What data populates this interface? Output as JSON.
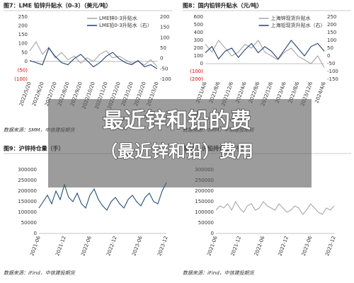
{
  "chart_data": [
    {
      "type": "line",
      "title": "图7：LME 铅锌升贴水（0-3）（美元/吨）",
      "source": "数据来源：SMM，中信建投期货",
      "categories": [
        "2022/5/20",
        null,
        "2022/6/20",
        null,
        "2022/7/20",
        null,
        "2022/8/20",
        null,
        "2022/9/20",
        null,
        "2022/10/20",
        null,
        "2022/11/20",
        null,
        "2022/12/20",
        null,
        "2023/1/20",
        null,
        "2023/2/20",
        null,
        "2023/3/20"
      ],
      "series": [
        {
          "name": "LME锌0-3升贴水",
          "color": "#a6a6a6",
          "values": [
            60,
            110,
            40,
            80,
            20,
            50,
            10,
            30,
            -10,
            20,
            0,
            40,
            60,
            20,
            30,
            10,
            -10,
            0,
            -20,
            10,
            -30
          ]
        },
        {
          "name": "LME铅0-3升贴水（右）",
          "color": "#1f3f73",
          "axis": "y2",
          "values": [
            -10,
            -20,
            -30,
            50,
            10,
            -20,
            -30,
            0,
            20,
            -10,
            -40,
            -20,
            10,
            30,
            0,
            -20,
            -30,
            -10,
            -40,
            -30,
            -50
          ]
        }
      ],
      "ylim": [
        -100,
        250
      ],
      "yticks": [
        {
          "value": -100,
          "label": "(100)"
        },
        {
          "value": -50,
          "label": "(50)"
        },
        0,
        50,
        100,
        150,
        200,
        250
      ],
      "y2lim": [
        -100,
        200
      ],
      "y2ticks": [
        -100,
        -50,
        0,
        50,
        100,
        150,
        200
      ]
    },
    {
      "type": "line",
      "title": "图8：国内铅锌升贴水（元/吨）",
      "source": "数据来源：SMM，中信建投期货",
      "categories": [
        "2021/4/6",
        null,
        "2021/8/6",
        null,
        "2021/12/6",
        null,
        "2022/4/6",
        null,
        "2022/8/6",
        null,
        "2022/12/6",
        null,
        "2023/4/6",
        null,
        "2023/8/6",
        null,
        "2023/12/6",
        null,
        "2024/4/6"
      ],
      "series": [
        {
          "name": "上海锌现货升贴水",
          "color": "#a6a6a6",
          "values": [
            250,
            150,
            300,
            200,
            100,
            150,
            250,
            200,
            300,
            150,
            100,
            50,
            150,
            200,
            100,
            50,
            0,
            100,
            -50
          ]
        },
        {
          "name": "上海铅现货升贴水（右）",
          "color": "#1f3f73",
          "axis": "y2",
          "values": [
            20,
            60,
            -20,
            30,
            50,
            -10,
            40,
            80,
            20,
            60,
            30,
            -20,
            40,
            100,
            50,
            0,
            60,
            80,
            30
          ]
        }
      ],
      "ylim": [
        -200,
        600
      ],
      "yticks": [
        {
          "value": -200,
          "label": "(200)"
        },
        {
          "value": -100,
          "label": "(100)"
        },
        0,
        100,
        200,
        300,
        400,
        500,
        600
      ],
      "y2lim": [
        -150,
        250
      ],
      "y2ticks": [
        -150,
        -100,
        -50,
        0,
        50,
        100,
        150,
        200,
        250
      ]
    },
    {
      "type": "line",
      "title": "图9：沪锌持仓量（手）",
      "source": "数据来源：iFind，中信建投期货",
      "categories": [
        "2021-06",
        null,
        null,
        null,
        null,
        null,
        "2021-12",
        null,
        null,
        null,
        null,
        null,
        "2022-06",
        null,
        null,
        null,
        null,
        null,
        "2022-12",
        null,
        null,
        null,
        null,
        null,
        "2023-06",
        null,
        null,
        null,
        null,
        null,
        "2023-12"
      ],
      "series": [
        {
          "color": "#1f4e79",
          "values": [
            120000,
            150000,
            180000,
            140000,
            200000,
            160000,
            230000,
            170000,
            150000,
            190000,
            140000,
            120000,
            180000,
            210000,
            160000,
            130000,
            110000,
            150000,
            170000,
            140000,
            120000,
            160000,
            180000,
            150000,
            130000,
            170000,
            190000,
            150000,
            140000,
            200000,
            240000
          ]
        }
      ],
      "ylim": [
        0,
        300000
      ],
      "yticks": [
        0,
        50000,
        100000,
        150000,
        200000,
        250000,
        300000
      ]
    },
    {
      "type": "line",
      "title": "图10：沪铅持仓量（手）",
      "source": "数据来源：iFind，中信建投期货",
      "categories": [
        "2021-06",
        null,
        null,
        null,
        null,
        null,
        "2021-12",
        null,
        null,
        null,
        null,
        null,
        "2022-06",
        null,
        null,
        null,
        null,
        null,
        "2022-12",
        null,
        null,
        null,
        null,
        null,
        "2023-06",
        null,
        null,
        null,
        null,
        null,
        "2023-12"
      ],
      "series": [
        {
          "color": "#a6a6a6",
          "values": [
            110000,
            130000,
            120000,
            140000,
            110000,
            150000,
            120000,
            100000,
            130000,
            140000,
            110000,
            120000,
            150000,
            130000,
            120000,
            110000,
            140000,
            120000,
            100000,
            110000,
            130000,
            120000,
            90000,
            110000,
            140000,
            120000,
            100000,
            90000,
            120000,
            110000,
            130000
          ]
        }
      ],
      "ylim": [
        0,
        300000
      ],
      "yticks": [
        0,
        50000,
        100000,
        150000,
        200000,
        250000,
        300000
      ]
    }
  ],
  "overlay": {
    "line1": "最近锌和铅的费",
    "line2": "（最近锌和铅）费用"
  }
}
